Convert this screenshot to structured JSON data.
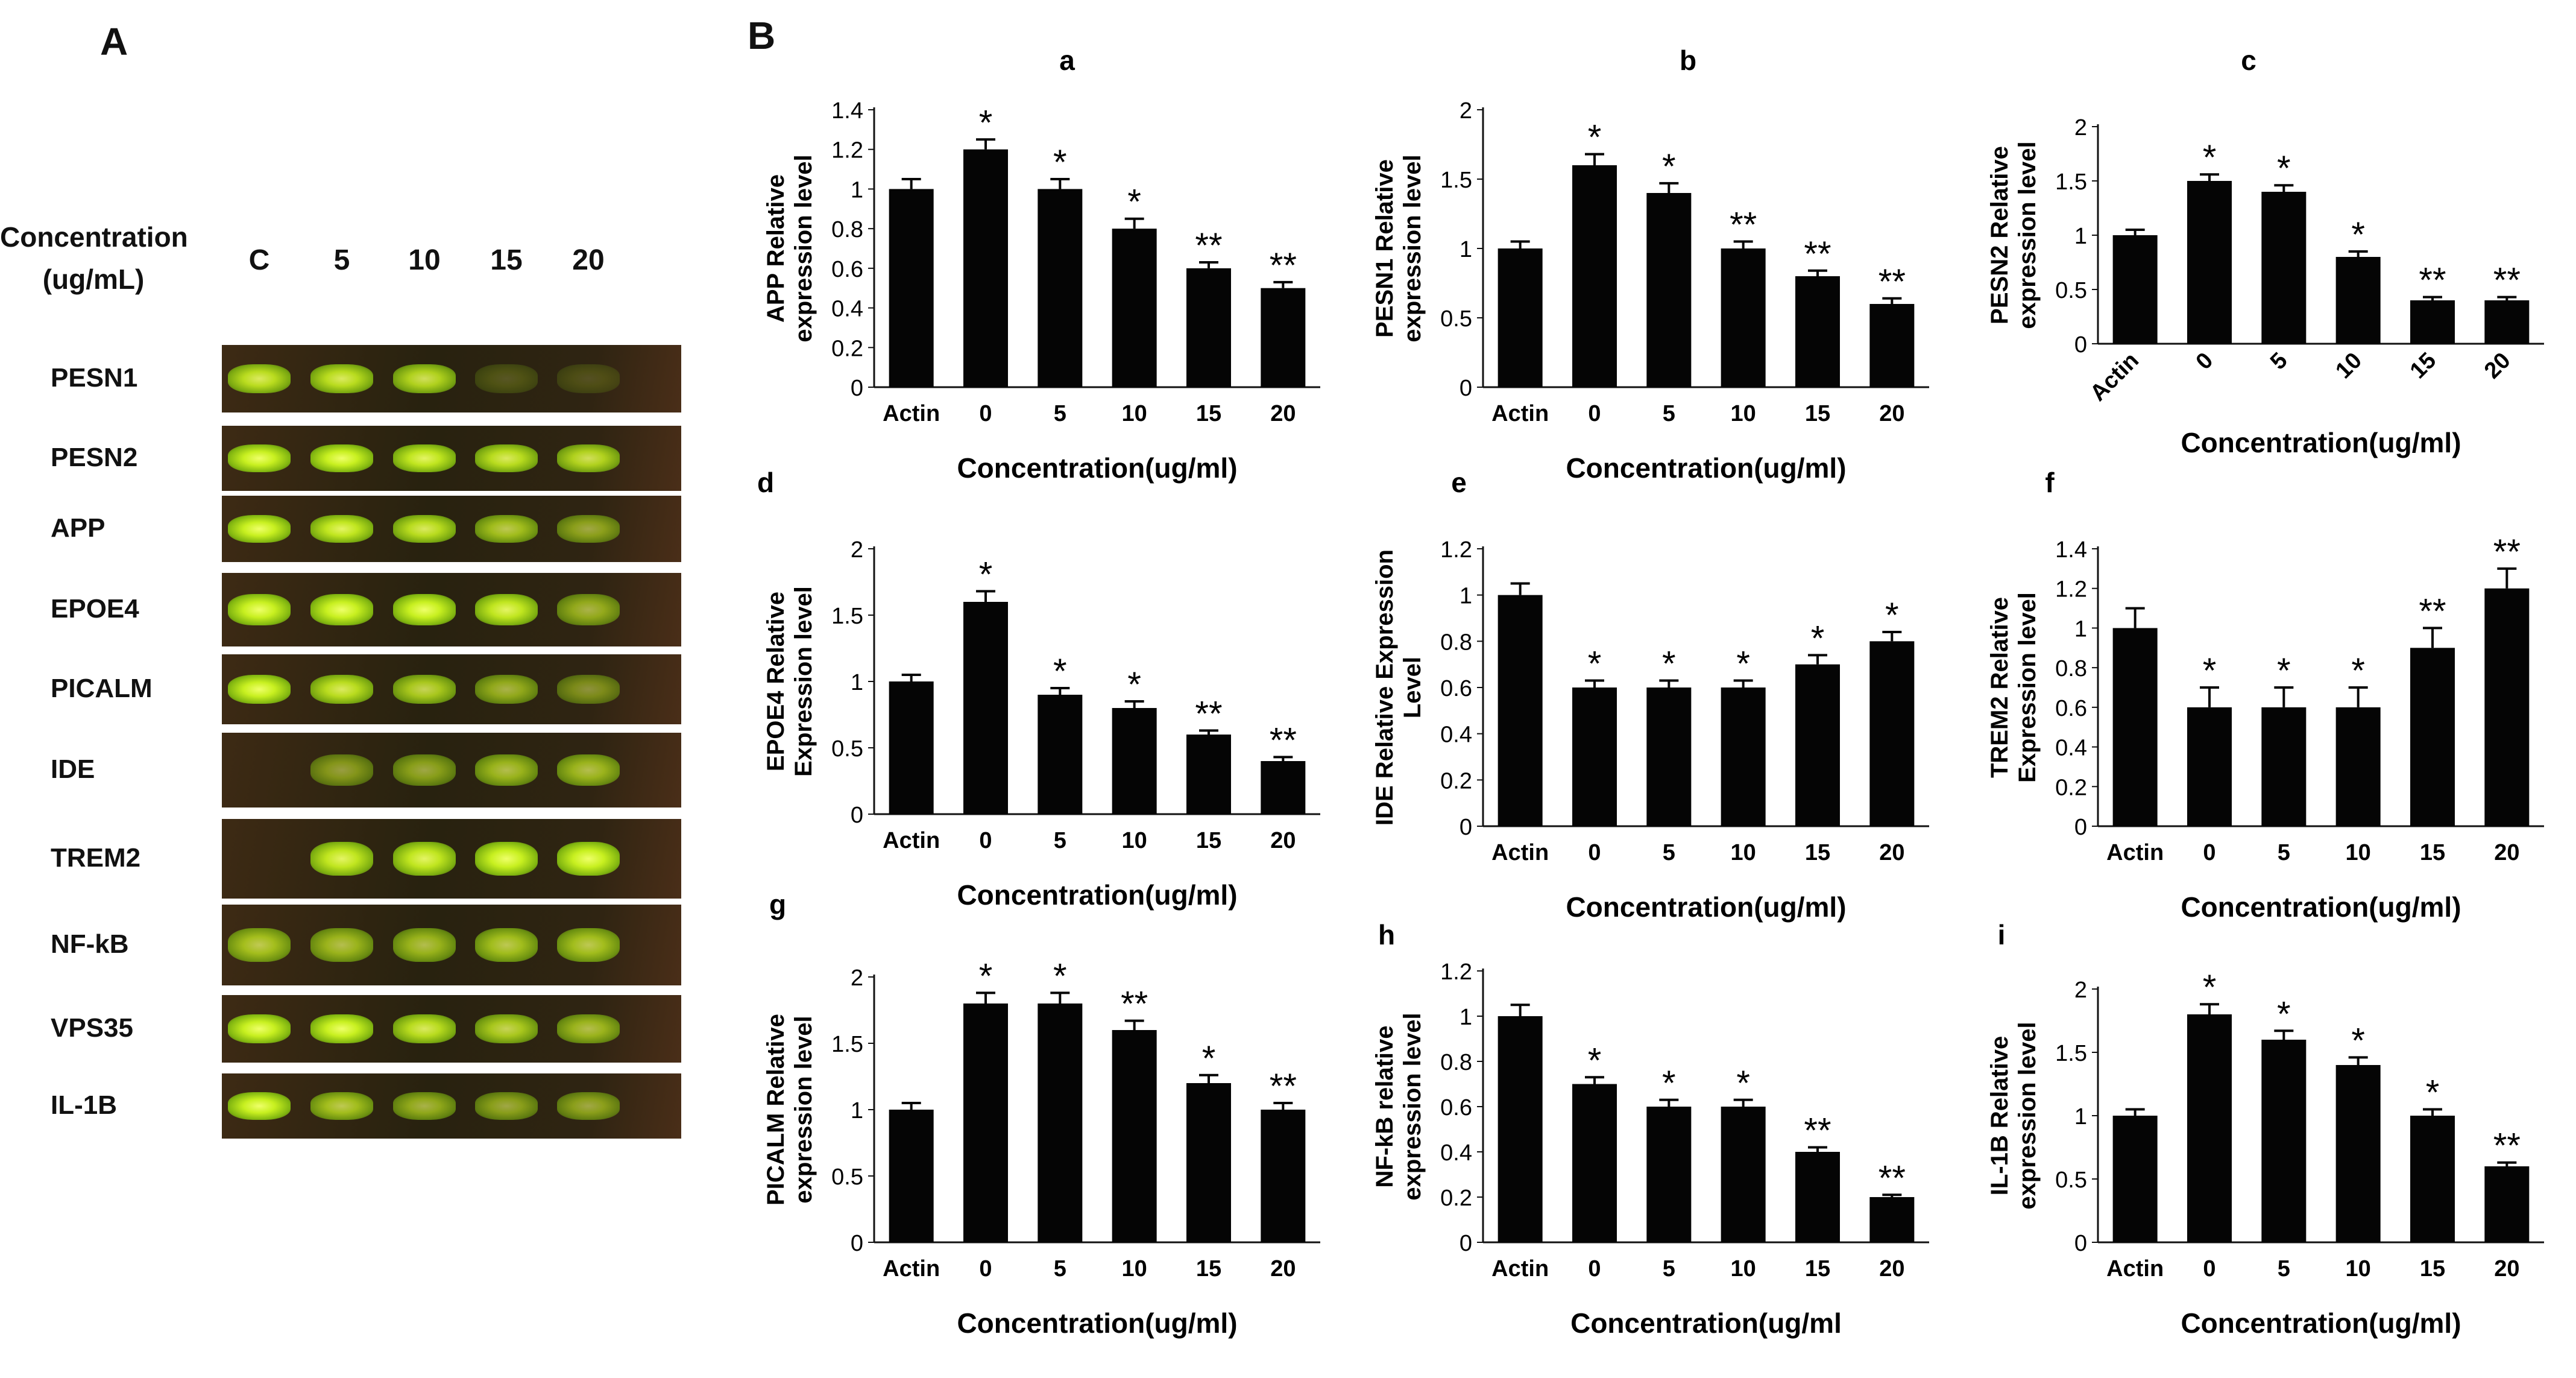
{
  "panel_labels": {
    "A": "A",
    "B": "B"
  },
  "gel": {
    "header": {
      "line1": "Concentration",
      "line2": "(ug/mL)"
    },
    "lanes": [
      "C",
      "5",
      "10",
      "15",
      "20"
    ],
    "rows": [
      {
        "label": "PESN1",
        "intensity": [
          0.75,
          0.75,
          0.7,
          0.08,
          0.05
        ]
      },
      {
        "label": "PESN2",
        "intensity": [
          1.0,
          0.95,
          0.8,
          0.75,
          0.7
        ]
      },
      {
        "label": "APP",
        "intensity": [
          0.85,
          0.8,
          0.75,
          0.6,
          0.45
        ]
      },
      {
        "label": "EPOE4",
        "intensity": [
          0.95,
          0.9,
          0.85,
          0.8,
          0.5
        ]
      },
      {
        "label": "PICALM",
        "intensity": [
          0.85,
          0.75,
          0.65,
          0.5,
          0.35
        ]
      },
      {
        "label": "IDE",
        "intensity": [
          0.0,
          0.4,
          0.45,
          0.55,
          0.55
        ]
      },
      {
        "label": "TREM2",
        "intensity": [
          0.0,
          0.8,
          0.8,
          0.85,
          0.95
        ]
      },
      {
        "label": "NF-kB",
        "intensity": [
          0.6,
          0.55,
          0.55,
          0.6,
          0.6
        ]
      },
      {
        "label": "VPS35",
        "intensity": [
          1.0,
          0.9,
          0.75,
          0.65,
          0.55
        ]
      },
      {
        "label": "IL-1B",
        "intensity": [
          0.85,
          0.6,
          0.5,
          0.45,
          0.45
        ]
      }
    ]
  },
  "chart_data": [
    {
      "id": "a",
      "type": "bar",
      "letter": "a",
      "ylabel": [
        "APP Relative",
        "expression level"
      ],
      "xlabel": "Concentration(ug/ml)",
      "categories": [
        "Actin",
        "0",
        "5",
        "10",
        "15",
        "20"
      ],
      "values": [
        1.0,
        1.2,
        1.0,
        0.8,
        0.6,
        0.5
      ],
      "errors": [
        0.05,
        0.05,
        0.05,
        0.05,
        0.03,
        0.03
      ],
      "significance": [
        "",
        "*",
        "*",
        "*",
        "**",
        "**"
      ],
      "ylim": [
        0,
        1.4
      ],
      "yticks": [
        "0",
        "0.2",
        "0.4",
        "0.6",
        "0.8",
        "1",
        "1.2",
        "1.4"
      ],
      "rotated_x": false
    },
    {
      "id": "b",
      "type": "bar",
      "letter": "b",
      "ylabel": [
        "PESN1 Relative",
        "expression level"
      ],
      "xlabel": "Concentration(ug/ml)",
      "categories": [
        "Actin",
        "0",
        "5",
        "10",
        "15",
        "20"
      ],
      "values": [
        1.0,
        1.6,
        1.4,
        1.0,
        0.8,
        0.6
      ],
      "errors": [
        0.05,
        0.08,
        0.07,
        0.05,
        0.04,
        0.04
      ],
      "significance": [
        "",
        "*",
        "*",
        "**",
        "**",
        "**"
      ],
      "ylim": [
        0,
        2
      ],
      "yticks": [
        "0",
        "0.5",
        "1",
        "1.5",
        "2"
      ],
      "rotated_x": false
    },
    {
      "id": "c",
      "type": "bar",
      "letter": "c",
      "ylabel": [
        "PESN2 Relative",
        "expression level"
      ],
      "xlabel": "Concentration(ug/ml)",
      "categories": [
        "Actin",
        "0",
        "5",
        "10",
        "15",
        "20"
      ],
      "values": [
        1.0,
        1.5,
        1.4,
        0.8,
        0.4,
        0.4
      ],
      "errors": [
        0.05,
        0.06,
        0.06,
        0.05,
        0.03,
        0.03
      ],
      "significance": [
        "",
        "*",
        "*",
        "*",
        "**",
        "**"
      ],
      "ylim": [
        0,
        2
      ],
      "yticks": [
        "0",
        "0.5",
        "1",
        "1.5",
        "2"
      ],
      "rotated_x": true
    },
    {
      "id": "d",
      "type": "bar",
      "letter": "d",
      "ylabel": [
        "EPOE4 Relative",
        "Expression level"
      ],
      "xlabel": "Concentration(ug/ml)",
      "categories": [
        "Actin",
        "0",
        "5",
        "10",
        "15",
        "20"
      ],
      "values": [
        1.0,
        1.6,
        0.9,
        0.8,
        0.6,
        0.4
      ],
      "errors": [
        0.05,
        0.08,
        0.05,
        0.05,
        0.03,
        0.03
      ],
      "significance": [
        "",
        "*",
        "*",
        "*",
        "**",
        "**"
      ],
      "ylim": [
        0,
        2
      ],
      "yticks": [
        "0",
        "0.5",
        "1",
        "1.5",
        "2"
      ],
      "rotated_x": false
    },
    {
      "id": "e",
      "type": "bar",
      "letter": "e",
      "ylabel": [
        "IDE Relative Expression",
        "Level"
      ],
      "xlabel": "Concentration(ug/ml)",
      "categories": [
        "Actin",
        "0",
        "5",
        "10",
        "15",
        "20"
      ],
      "values": [
        1.0,
        0.6,
        0.6,
        0.6,
        0.7,
        0.8
      ],
      "errors": [
        0.05,
        0.03,
        0.03,
        0.03,
        0.04,
        0.04
      ],
      "significance": [
        "",
        "*",
        "*",
        "*",
        "*",
        "*"
      ],
      "ylim": [
        0,
        1.2
      ],
      "yticks": [
        "0",
        "0.2",
        "0.4",
        "0.6",
        "0.8",
        "1",
        "1.2"
      ],
      "rotated_x": false
    },
    {
      "id": "f",
      "type": "bar",
      "letter": "f",
      "ylabel": [
        "TREM2 Relative",
        "Expression level"
      ],
      "xlabel": "Concentration(ug/ml)",
      "categories": [
        "Actin",
        "0",
        "5",
        "10",
        "15",
        "20"
      ],
      "values": [
        1.0,
        0.6,
        0.6,
        0.6,
        0.9,
        1.2
      ],
      "errors": [
        0.1,
        0.1,
        0.1,
        0.1,
        0.1,
        0.1
      ],
      "significance": [
        "",
        "*",
        "*",
        "*",
        "**",
        "**"
      ],
      "ylim": [
        0,
        1.4
      ],
      "yticks": [
        "0",
        "0.2",
        "0.4",
        "0.6",
        "0.8",
        "1",
        "1.2",
        "1.4"
      ],
      "rotated_x": false
    },
    {
      "id": "g",
      "type": "bar",
      "letter": "g",
      "ylabel": [
        "PICALM Relative",
        "expression level"
      ],
      "xlabel": "Concentration(ug/ml)",
      "categories": [
        "Actin",
        "0",
        "5",
        "10",
        "15",
        "20"
      ],
      "values": [
        1.0,
        1.8,
        1.8,
        1.6,
        1.2,
        1.0
      ],
      "errors": [
        0.05,
        0.08,
        0.08,
        0.07,
        0.06,
        0.05
      ],
      "significance": [
        "",
        "*",
        "*",
        "**",
        "*",
        "**"
      ],
      "ylim": [
        0,
        2
      ],
      "yticks": [
        "0",
        "0.5",
        "1",
        "1.5",
        "2"
      ],
      "rotated_x": false
    },
    {
      "id": "h",
      "type": "bar",
      "letter": "h",
      "ylabel": [
        "NF-kB relative",
        "expression level"
      ],
      "xlabel": "Concentration(ug/ml",
      "categories": [
        "Actin",
        "0",
        "5",
        "10",
        "15",
        "20"
      ],
      "values": [
        1.0,
        0.7,
        0.6,
        0.6,
        0.4,
        0.2
      ],
      "errors": [
        0.05,
        0.03,
        0.03,
        0.03,
        0.02,
        0.01
      ],
      "significance": [
        "",
        "*",
        "*",
        "*",
        "**",
        "**"
      ],
      "ylim": [
        0,
        1.2
      ],
      "yticks": [
        "0",
        "0.2",
        "0.4",
        "0.6",
        "0.8",
        "1",
        "1.2"
      ],
      "rotated_x": false
    },
    {
      "id": "i",
      "type": "bar",
      "letter": "i",
      "ylabel": [
        "IL-1B Relative",
        "expression level"
      ],
      "xlabel": "Concentration(ug/ml)",
      "categories": [
        "Actin",
        "0",
        "5",
        "10",
        "15",
        "20"
      ],
      "values": [
        1.0,
        1.8,
        1.6,
        1.4,
        1.0,
        0.6
      ],
      "errors": [
        0.05,
        0.08,
        0.07,
        0.06,
        0.05,
        0.03
      ],
      "significance": [
        "",
        "*",
        "*",
        "*",
        "*",
        "**"
      ],
      "ylim": [
        0,
        2
      ],
      "yticks": [
        "0",
        "0.5",
        "1",
        "1.5",
        "2"
      ],
      "rotated_x": false
    }
  ]
}
